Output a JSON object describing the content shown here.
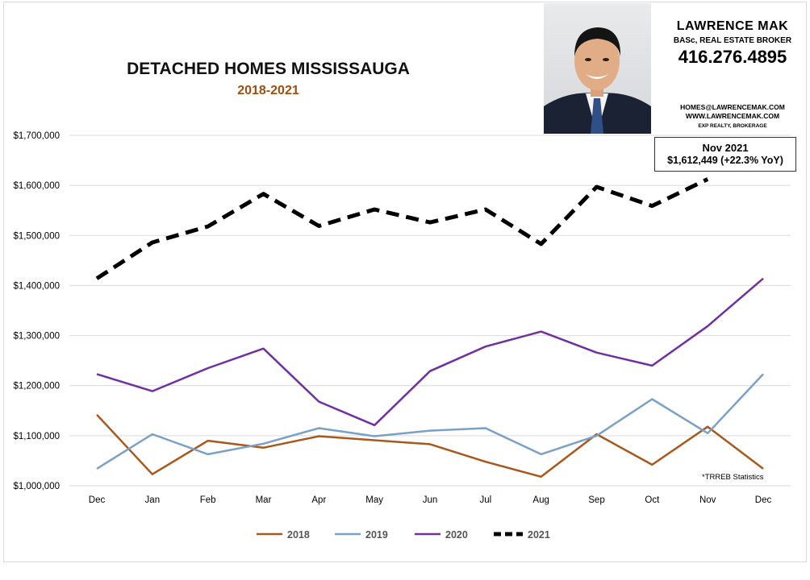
{
  "header": {
    "title": "DETACHED HOMES MISSISSAUGA",
    "subtitle": "2018-2021"
  },
  "agent": {
    "name": "LAWRENCE MAK",
    "title": "BASc, REAL ESTATE BROKER",
    "phone": "416.276.4895",
    "email": "HOMES@LAWRENCEMAK.COM",
    "website": "WWW.LAWRENCEMAK.COM",
    "brokerage": "EXP REALTY, BROKERAGE"
  },
  "callout": {
    "line1": "Nov 2021",
    "line2": "$1,612,449 (+22.3%  YoY)"
  },
  "source_note": "*TRREB Statistics",
  "chart_data": {
    "type": "line",
    "title": "DETACHED HOMES MISSISSAUGA",
    "subtitle": "2018-2021",
    "categories": [
      "Dec",
      "Jan",
      "Feb",
      "Mar",
      "Apr",
      "May",
      "Jun",
      "Jul",
      "Aug",
      "Sep",
      "Oct",
      "Nov",
      "Dec"
    ],
    "ylim": [
      1000000,
      1700000
    ],
    "yticks": [
      {
        "value": 1000000,
        "label": "$1,000,000"
      },
      {
        "value": 1100000,
        "label": "$1,100,000"
      },
      {
        "value": 1200000,
        "label": "$1,200,000"
      },
      {
        "value": 1300000,
        "label": "$1,300,000"
      },
      {
        "value": 1400000,
        "label": "$1,400,000"
      },
      {
        "value": 1500000,
        "label": "$1,500,000"
      },
      {
        "value": 1600000,
        "label": "$1,600,000"
      },
      {
        "value": 1700000,
        "label": "$1,700,000"
      }
    ],
    "grid": true,
    "legend_position": "bottom",
    "series": [
      {
        "name": "2018",
        "color": "#a9581c",
        "dashed": false,
        "values": [
          1142000,
          1023000,
          1090000,
          1076000,
          1099000,
          1091000,
          1083000,
          1048000,
          1018000,
          1103000,
          1042000,
          1118000,
          1034000
        ]
      },
      {
        "name": "2019",
        "color": "#7aa0c8",
        "dashed": false,
        "values": [
          1034000,
          1103000,
          1063000,
          1084000,
          1115000,
          1099000,
          1110000,
          1115000,
          1063000,
          1100000,
          1173000,
          1105000,
          1223000
        ]
      },
      {
        "name": "2020",
        "color": "#7030a0",
        "dashed": false,
        "values": [
          1223000,
          1189000,
          1235000,
          1274000,
          1168000,
          1121000,
          1229000,
          1278000,
          1308000,
          1266000,
          1240000,
          1319000,
          1414000
        ]
      },
      {
        "name": "2021",
        "color": "#000000",
        "dashed": true,
        "values": [
          1414000,
          1486000,
          1518000,
          1583000,
          1519000,
          1552000,
          1526000,
          1552000,
          1483000,
          1597000,
          1559000,
          1612449,
          null
        ]
      }
    ]
  }
}
